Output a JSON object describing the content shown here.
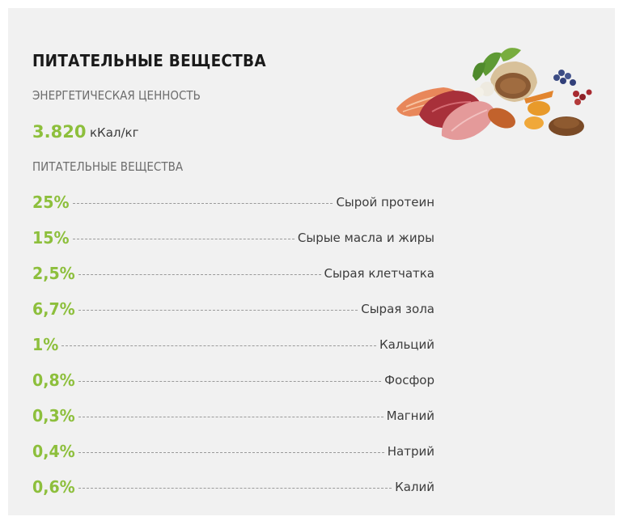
{
  "title": "ПИТАТЕЛЬНЫЕ ВЕЩЕСТВА",
  "energy": {
    "heading": "ЭНЕРГЕТИЧЕСКАЯ ЦЕННОСТЬ",
    "value": "3.820",
    "unit": "кКал/кг"
  },
  "nutrients": {
    "heading": "ПИТАТЕЛЬНЫЕ ВЕЩЕСТВА",
    "items": [
      {
        "pct": "25%",
        "label": "Сырой протеин"
      },
      {
        "pct": "15%",
        "label": "Сырые масла и жиры"
      },
      {
        "pct": "2,5%",
        "label": "Сырая клетчатка"
      },
      {
        "pct": "6,7%",
        "label": "Сырая зола"
      },
      {
        "pct": "1%",
        "label": "Кальций"
      },
      {
        "pct": "0,8%",
        "label": "Фосфор"
      },
      {
        "pct": "0,3%",
        "label": "Магний"
      },
      {
        "pct": "0,4%",
        "label": "Натрий"
      },
      {
        "pct": "0,6%",
        "label": "Калий"
      }
    ]
  },
  "colors": {
    "accent": "#8dbf3c",
    "background": "#f1f1f1"
  },
  "icons": {
    "food": "food-ingredients-illustration"
  }
}
